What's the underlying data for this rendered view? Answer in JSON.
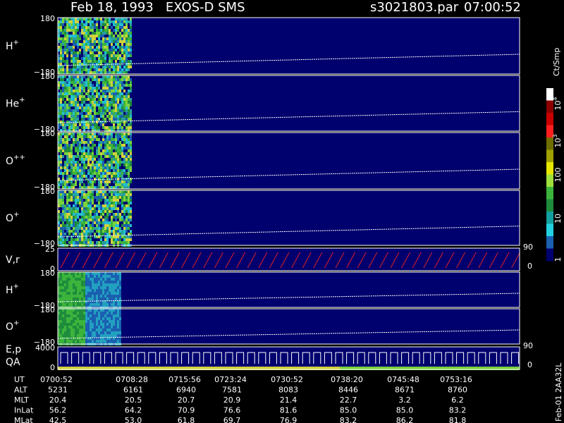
{
  "header": {
    "title": "Feb 18, 1993   EXOS-D SMS",
    "file": "s3021803.par",
    "time": "07:00:52"
  },
  "panels": [
    {
      "name": "H",
      "charge": "+",
      "top": "180",
      "bottom": "−180"
    },
    {
      "name": "He",
      "charge": "+",
      "top": "180",
      "bottom": "−180"
    },
    {
      "name": "O",
      "charge": "++",
      "top": "180",
      "bottom": "−180"
    },
    {
      "name": "O",
      "charge": "+",
      "top": "180",
      "bottom": "−180"
    },
    {
      "name": "V,r",
      "top": "25",
      "bottom": "0",
      "right_top": "90",
      "right_bottom": "0"
    },
    {
      "name": "H",
      "charge": "+",
      "top": "180",
      "bottom": "−180"
    },
    {
      "name": "O",
      "charge": "+",
      "top": "180",
      "bottom": "−180"
    },
    {
      "name": "E,p",
      "name2": "QA",
      "top": "4000",
      "bottom": "0",
      "right_top": "90",
      "right_bottom": "0"
    }
  ],
  "colorbar": {
    "title": "Ct/Smp",
    "labels": [
      {
        "base": "10",
        "exp": "4"
      },
      {
        "base": "10",
        "exp": "3"
      },
      {
        "base": "100"
      },
      {
        "base": "10"
      },
      {
        "base": "1"
      }
    ]
  },
  "orbit_table": {
    "rows": [
      {
        "label": "UT",
        "values": [
          "0700:52",
          "0708:28",
          "0715:56",
          "0723:24",
          "0730:52",
          "0738:20",
          "0745:48",
          "0753:16"
        ]
      },
      {
        "label": "ALT",
        "values": [
          "5231",
          "6161",
          "6940",
          "7581",
          "8083",
          "8446",
          "8671",
          "8760"
        ]
      },
      {
        "label": "MLT",
        "values": [
          "20.4",
          "20.5",
          "20.7",
          "20.9",
          "21.4",
          "22.7",
          "3.2",
          "6.2"
        ]
      },
      {
        "label": "InLat",
        "values": [
          "56.2",
          "64.2",
          "70.9",
          "76.6",
          "81.6",
          "85.0",
          "85.0",
          "83.2"
        ]
      },
      {
        "label": "MLat",
        "values": [
          "42.5",
          "53.0",
          "61.8",
          "69.7",
          "76.9",
          "83.2",
          "86.2",
          "81.8"
        ]
      }
    ]
  },
  "footer_id": "Feb-01 2AA32L"
}
